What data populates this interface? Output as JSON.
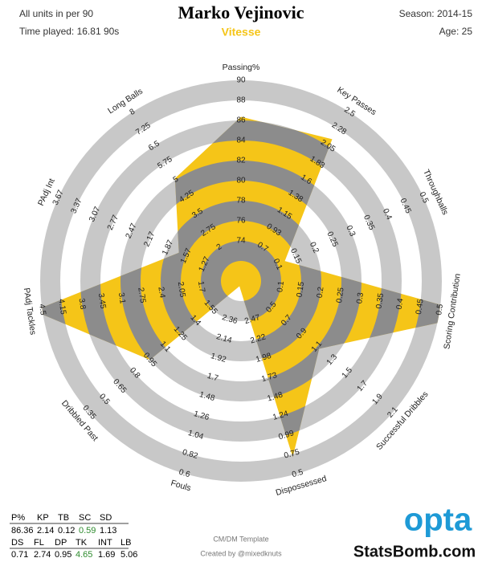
{
  "chart_data": {
    "type": "radar",
    "title": "Marko Vejinovic",
    "subtitle": "Vitesse",
    "notes_left": [
      "All units in per 90",
      "Time played: 16.81 90s"
    ],
    "notes_right": [
      "Season: 2014-15",
      "Age: 25"
    ],
    "footer": [
      "CM/DM Template",
      "Created by @mixedknuts"
    ],
    "brand": [
      "opta",
      "StatsBomb.com"
    ],
    "categories": [
      "Passing%",
      "Key Passes",
      "Throughballs",
      "Scoring Contribution",
      "Successful Dribbles",
      "Dispossessed",
      "Fouls",
      "Dribbled Past",
      "PAdj Tackles",
      "PAdj Int",
      "Long Balls"
    ],
    "abbreviations": [
      "P%",
      "KP",
      "TB",
      "SC",
      "SD",
      "DS",
      "FL",
      "DP",
      "TK",
      "INT",
      "LB"
    ],
    "series": [
      {
        "color": "#f5c518",
        "values": [
          86.36,
          2.14,
          0.12,
          0.59,
          1.13,
          0.71,
          2.74,
          0.95,
          4.65,
          1.69,
          5.06
        ]
      }
    ],
    "table_highlight": {
      "color": "#2e8b2e",
      "indices": [
        3,
        8
      ]
    },
    "axis_lims": [
      [
        74,
        90
      ],
      [
        0.7,
        2.5
      ],
      [
        0.1,
        0.5
      ],
      [
        0.1,
        0.5
      ],
      [
        0.5,
        2.1
      ],
      [
        2.47,
        0.5
      ],
      [
        2.36,
        0.6
      ],
      [
        1.55,
        0.35
      ],
      [
        1.7,
        4.5
      ],
      [
        1.27,
        3.67
      ],
      [
        2,
        8
      ]
    ],
    "axis_ticks": [
      [
        74,
        76,
        78,
        80,
        82,
        84,
        86,
        88,
        90
      ],
      [
        0.7,
        0.93,
        1.15,
        1.38,
        1.6,
        1.83,
        2.05,
        2.28,
        2.5
      ],
      [
        0.1,
        0.15,
        0.2,
        0.25,
        0.3,
        0.35,
        0.4,
        0.45,
        0.5
      ],
      [
        0.1,
        0.15,
        0.2,
        0.25,
        0.3,
        0.35,
        0.4,
        0.45,
        0.5
      ],
      [
        0.5,
        0.7,
        0.9,
        1.1,
        1.3,
        1.5,
        1.7,
        1.9,
        2.1
      ],
      [
        2.47,
        2.22,
        1.98,
        1.73,
        1.48,
        1.24,
        0.99,
        0.75,
        0.5
      ],
      [
        2.36,
        2.14,
        1.92,
        1.7,
        1.48,
        1.26,
        1.04,
        0.82,
        0.6
      ],
      [
        1.55,
        1.4,
        1.25,
        1.1,
        0.95,
        0.8,
        0.65,
        0.5,
        0.35
      ],
      [
        1.7,
        2.05,
        2.4,
        2.75,
        3.1,
        3.45,
        3.8,
        4.15,
        4.5
      ],
      [
        1.27,
        1.57,
        1.87,
        2.17,
        2.47,
        2.77,
        3.07,
        3.37,
        3.67
      ],
      [
        2,
        2.75,
        3.5,
        4.25,
        5,
        5.75,
        6.5,
        7.25,
        8
      ]
    ]
  }
}
